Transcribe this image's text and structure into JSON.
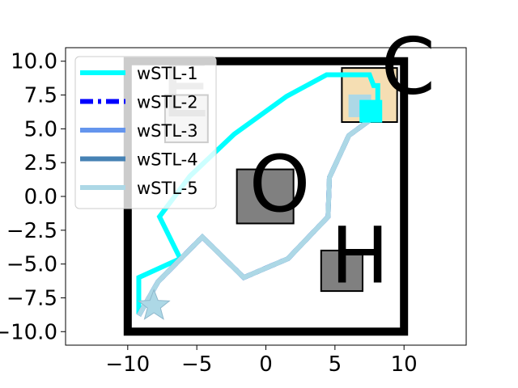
{
  "chart_data": {
    "type": "line",
    "title": "",
    "xlabel": "",
    "ylabel": "",
    "xlim": [
      -14.5,
      14.5
    ],
    "ylim": [
      -11,
      11
    ],
    "grid": false,
    "legend_placement": "top-left",
    "x_ticks": [
      -10,
      -5,
      0,
      5,
      10
    ],
    "x_tick_labels": [
      "−10",
      "−5",
      "0",
      "5",
      "10"
    ],
    "y_ticks": [
      10.0,
      7.5,
      5.0,
      2.5,
      0.0,
      -2.5,
      -5.0,
      -7.5,
      -10.0
    ],
    "y_tick_labels": [
      "10.0",
      "7.5",
      "5.0",
      "2.5",
      "0.0",
      "−2.5",
      "−5.0",
      "−7.5",
      "−10.0"
    ],
    "boundary": {
      "x": [
        -10,
        10
      ],
      "y": [
        -10,
        10
      ],
      "color": "#000000"
    },
    "regions": [
      {
        "label": "C",
        "x": [
          5.5,
          9.5
        ],
        "y": [
          5.5,
          9.5
        ],
        "fill": "#f5deb3",
        "label_at": [
          10.3,
          9.2
        ]
      },
      {
        "label": "E",
        "x": [
          -7.3,
          -4.2
        ],
        "y": [
          4.0,
          7.5
        ],
        "fill": "#d3d3d3",
        "label_at": [
          -5.8,
          7.5
        ]
      },
      {
        "label": "O",
        "x": [
          -2.1,
          2.0
        ],
        "y": [
          -2.0,
          2.0
        ],
        "fill": "#808080",
        "label_at": [
          1.0,
          0.5
        ]
      },
      {
        "label": "H",
        "x": [
          4.0,
          7.0
        ],
        "y": [
          -7.0,
          -4.0
        ],
        "fill": "#808080",
        "label_at": [
          6.8,
          -4.8
        ]
      }
    ],
    "series": [
      {
        "name": "wSTL-1",
        "color": "#00ffff",
        "style": "solid",
        "x": [
          -9.2,
          -9.2,
          -6.2,
          -7.7,
          -5.5,
          -2.3,
          1.5,
          4.4,
          7.5,
          7.8,
          8.1,
          8.1
        ],
        "y": [
          -8.7,
          -6.0,
          -4.6,
          -1.5,
          1.5,
          4.6,
          7.4,
          9.0,
          9.0,
          8.2,
          8.2,
          6.5
        ]
      },
      {
        "name": "wSTL-2",
        "color": "#0000ff",
        "style": "dashdot",
        "x": [
          -9.2,
          -7.8,
          -4.6,
          -1.6,
          1.6,
          4.5,
          4.6,
          6.0,
          8.0,
          8.1
        ],
        "y": [
          -8.8,
          -6.3,
          -3.0,
          -6.0,
          -4.6,
          -1.5,
          1.4,
          4.5,
          6.0,
          6.5
        ],
        "hidden_under": "wSTL-5"
      },
      {
        "name": "wSTL-3",
        "color": "#6495ed",
        "style": "solid",
        "x": [
          -9.2,
          -7.8,
          -4.6,
          -1.6,
          1.6,
          4.5,
          4.6,
          6.0,
          8.0,
          8.1
        ],
        "y": [
          -8.8,
          -6.3,
          -3.0,
          -6.0,
          -4.6,
          -1.5,
          1.4,
          4.5,
          6.0,
          6.5
        ],
        "hidden_under": "wSTL-5"
      },
      {
        "name": "wSTL-4",
        "color": "#4682b4",
        "style": "solid",
        "x": [
          -9.2,
          -7.8,
          -4.6,
          -1.6,
          1.6,
          4.5,
          4.6,
          6.0,
          8.0,
          8.1
        ],
        "y": [
          -8.8,
          -6.3,
          -3.0,
          -6.0,
          -4.6,
          -1.5,
          1.4,
          4.5,
          6.0,
          6.5
        ],
        "hidden_under": "wSTL-5"
      },
      {
        "name": "wSTL-5",
        "color": "#add8e6",
        "style": "solid",
        "x": [
          -9.2,
          -7.8,
          -4.6,
          -1.6,
          1.6,
          4.5,
          4.6,
          6.0,
          8.0,
          8.1
        ],
        "y": [
          -8.8,
          -6.3,
          -3.0,
          -6.0,
          -4.6,
          -1.5,
          1.4,
          4.5,
          6.0,
          6.5
        ]
      }
    ],
    "goal_marks": [
      {
        "x": 6.8,
        "y": 6.7,
        "fill": "#add8e6"
      },
      {
        "x": 7.6,
        "y": 6.3,
        "fill": "#00ffff"
      }
    ],
    "start_marker": {
      "shape": "star",
      "x": -8.1,
      "y": -8.1,
      "fill": "#add8e6"
    }
  }
}
